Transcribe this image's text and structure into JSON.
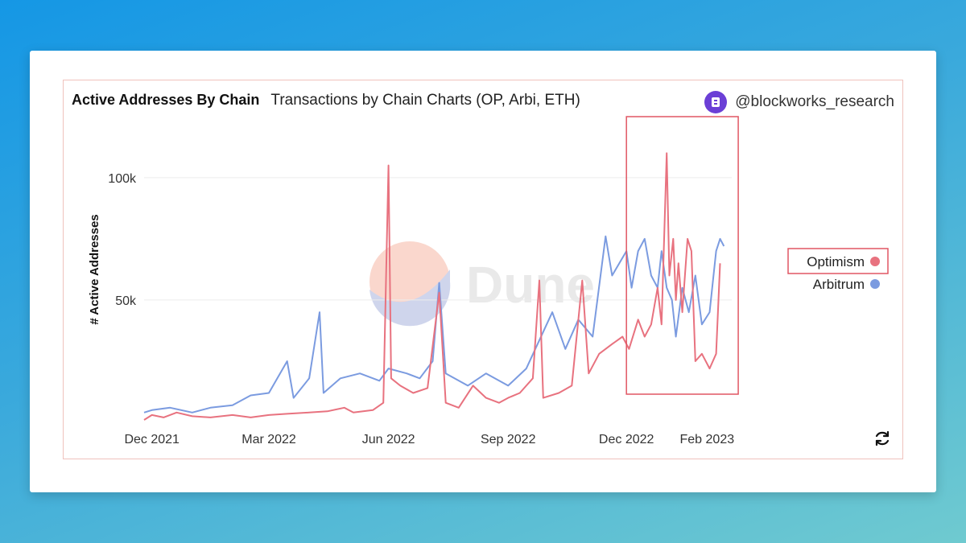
{
  "header": {
    "title": "Active Addresses By Chain",
    "subtitle": "Transactions by Chain Charts (OP, Arbi, ETH)",
    "author": "@blockworks_research",
    "avatar_icon": "blockworks-logo-icon",
    "avatar_color": "#6b3fd6"
  },
  "watermark": {
    "text": "Dune"
  },
  "controls": {
    "refresh_icon": "refresh-icon"
  },
  "colors": {
    "optimism": "#e8727f",
    "arbitrum": "#7b9be0",
    "highlight_box": "#e05663"
  },
  "chart_data": {
    "type": "line",
    "title": "Active Addresses By Chain",
    "xlabel": "",
    "ylabel": "# Active Addresses",
    "x_start": "2021-11-25",
    "x_end": "2023-02-20",
    "x_ticks": [
      {
        "date": "2021-12-01",
        "label": "Dec 2021"
      },
      {
        "date": "2022-03-01",
        "label": "Mar 2022"
      },
      {
        "date": "2022-06-01",
        "label": "Jun 2022"
      },
      {
        "date": "2022-09-01",
        "label": "Sep 2022"
      },
      {
        "date": "2022-12-01",
        "label": "Dec 2022"
      },
      {
        "date": "2023-02-01",
        "label": "Feb 2023"
      }
    ],
    "y_ticks": [
      {
        "value": 50000,
        "label": "50k"
      },
      {
        "value": 100000,
        "label": "100k"
      }
    ],
    "ylim": [
      0,
      100000
    ],
    "grid": "horizontal",
    "legend": "right",
    "highlight": {
      "from": "2022-12-01",
      "to": "2023-02-25"
    },
    "series": [
      {
        "name": "Optimism",
        "color": "#e8727f",
        "points": [
          [
            "2021-11-25",
            1000
          ],
          [
            "2021-12-01",
            3000
          ],
          [
            "2021-12-10",
            2000
          ],
          [
            "2021-12-20",
            4000
          ],
          [
            "2022-01-01",
            2500
          ],
          [
            "2022-01-15",
            2000
          ],
          [
            "2022-02-01",
            3000
          ],
          [
            "2022-02-15",
            2000
          ],
          [
            "2022-03-01",
            3000
          ],
          [
            "2022-03-15",
            3500
          ],
          [
            "2022-04-01",
            4000
          ],
          [
            "2022-04-15",
            4500
          ],
          [
            "2022-04-28",
            6000
          ],
          [
            "2022-05-05",
            4000
          ],
          [
            "2022-05-20",
            5000
          ],
          [
            "2022-05-28",
            8000
          ],
          [
            "2022-06-01",
            105000
          ],
          [
            "2022-06-03",
            18000
          ],
          [
            "2022-06-10",
            15000
          ],
          [
            "2022-06-20",
            12000
          ],
          [
            "2022-07-01",
            14000
          ],
          [
            "2022-07-10",
            53000
          ],
          [
            "2022-07-15",
            8000
          ],
          [
            "2022-07-25",
            6000
          ],
          [
            "2022-08-05",
            15000
          ],
          [
            "2022-08-15",
            10000
          ],
          [
            "2022-08-25",
            8000
          ],
          [
            "2022-09-01",
            10000
          ],
          [
            "2022-09-10",
            12000
          ],
          [
            "2022-09-20",
            18000
          ],
          [
            "2022-09-25",
            58000
          ],
          [
            "2022-09-28",
            10000
          ],
          [
            "2022-10-10",
            12000
          ],
          [
            "2022-10-20",
            15000
          ],
          [
            "2022-10-28",
            58000
          ],
          [
            "2022-11-02",
            20000
          ],
          [
            "2022-11-10",
            28000
          ],
          [
            "2022-11-20",
            32000
          ],
          [
            "2022-11-28",
            35000
          ],
          [
            "2022-12-03",
            30000
          ],
          [
            "2022-12-10",
            42000
          ],
          [
            "2022-12-15",
            35000
          ],
          [
            "2022-12-20",
            40000
          ],
          [
            "2022-12-25",
            55000
          ],
          [
            "2022-12-28",
            40000
          ],
          [
            "2023-01-01",
            110000
          ],
          [
            "2023-01-03",
            60000
          ],
          [
            "2023-01-06",
            75000
          ],
          [
            "2023-01-08",
            50000
          ],
          [
            "2023-01-10",
            65000
          ],
          [
            "2023-01-13",
            45000
          ],
          [
            "2023-01-17",
            75000
          ],
          [
            "2023-01-20",
            70000
          ],
          [
            "2023-01-23",
            25000
          ],
          [
            "2023-01-28",
            28000
          ],
          [
            "2023-02-03",
            22000
          ],
          [
            "2023-02-08",
            28000
          ],
          [
            "2023-02-11",
            65000
          ]
        ]
      },
      {
        "name": "Arbitrum",
        "color": "#7b9be0",
        "points": [
          [
            "2021-11-25",
            4000
          ],
          [
            "2021-12-01",
            5000
          ],
          [
            "2021-12-15",
            6000
          ],
          [
            "2022-01-01",
            4000
          ],
          [
            "2022-01-15",
            6000
          ],
          [
            "2022-02-01",
            7000
          ],
          [
            "2022-02-15",
            11000
          ],
          [
            "2022-03-01",
            12000
          ],
          [
            "2022-03-15",
            25000
          ],
          [
            "2022-03-20",
            10000
          ],
          [
            "2022-04-01",
            18000
          ],
          [
            "2022-04-09",
            45000
          ],
          [
            "2022-04-12",
            12000
          ],
          [
            "2022-04-25",
            18000
          ],
          [
            "2022-05-10",
            20000
          ],
          [
            "2022-05-25",
            17000
          ],
          [
            "2022-06-01",
            22000
          ],
          [
            "2022-06-15",
            20000
          ],
          [
            "2022-06-25",
            18000
          ],
          [
            "2022-07-05",
            25000
          ],
          [
            "2022-07-10",
            57000
          ],
          [
            "2022-07-15",
            20000
          ],
          [
            "2022-08-01",
            15000
          ],
          [
            "2022-08-15",
            20000
          ],
          [
            "2022-09-01",
            15000
          ],
          [
            "2022-09-15",
            22000
          ],
          [
            "2022-10-05",
            45000
          ],
          [
            "2022-10-15",
            30000
          ],
          [
            "2022-10-25",
            42000
          ],
          [
            "2022-11-05",
            35000
          ],
          [
            "2022-11-15",
            76000
          ],
          [
            "2022-11-20",
            60000
          ],
          [
            "2022-12-01",
            70000
          ],
          [
            "2022-12-05",
            55000
          ],
          [
            "2022-12-10",
            70000
          ],
          [
            "2022-12-15",
            75000
          ],
          [
            "2022-12-20",
            60000
          ],
          [
            "2022-12-25",
            55000
          ],
          [
            "2022-12-28",
            70000
          ],
          [
            "2023-01-01",
            55000
          ],
          [
            "2023-01-05",
            50000
          ],
          [
            "2023-01-08",
            35000
          ],
          [
            "2023-01-13",
            55000
          ],
          [
            "2023-01-18",
            45000
          ],
          [
            "2023-01-23",
            60000
          ],
          [
            "2023-01-28",
            40000
          ],
          [
            "2023-02-03",
            45000
          ],
          [
            "2023-02-08",
            70000
          ],
          [
            "2023-02-11",
            75000
          ],
          [
            "2023-02-14",
            72000
          ]
        ]
      }
    ]
  }
}
